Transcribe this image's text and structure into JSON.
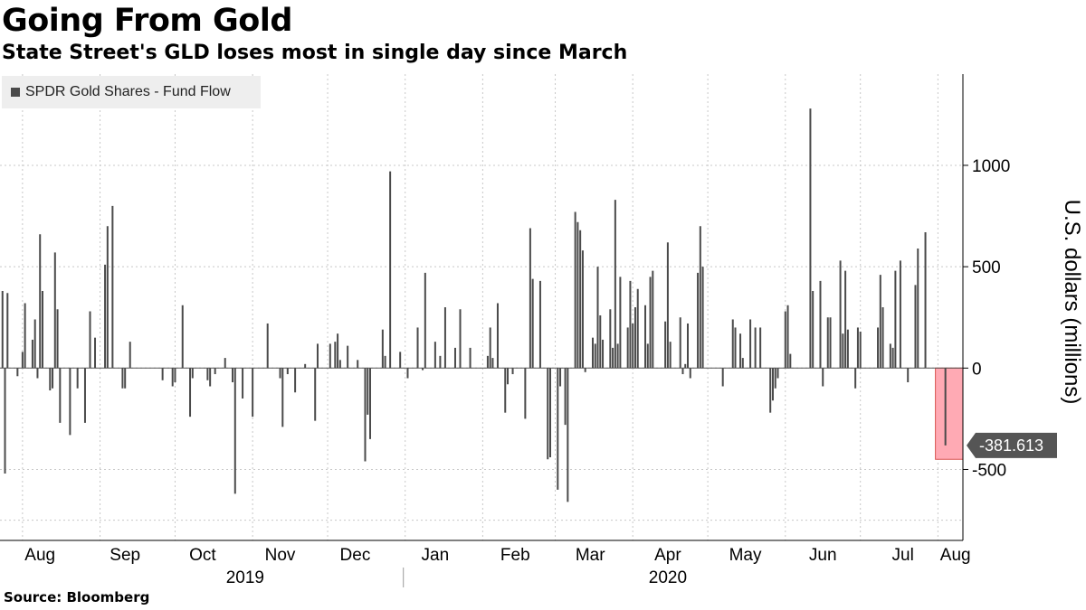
{
  "chart_data": {
    "type": "bar",
    "title": "Going From Gold",
    "subtitle": "State Street's GLD loses most in single day since March",
    "series": [
      {
        "name": "SPDR Gold Shares - Fund Flow",
        "color": "#4a4a4a",
        "points": [
          {
            "x": "2019-07-24",
            "y": 380
          },
          {
            "x": "2019-07-25",
            "y": -520
          },
          {
            "x": "2019-07-26",
            "y": 370
          },
          {
            "x": "2019-07-30",
            "y": -40
          },
          {
            "x": "2019-08-01",
            "y": 80
          },
          {
            "x": "2019-08-02",
            "y": 320
          },
          {
            "x": "2019-08-05",
            "y": 140
          },
          {
            "x": "2019-08-06",
            "y": 240
          },
          {
            "x": "2019-08-07",
            "y": -50
          },
          {
            "x": "2019-08-08",
            "y": 660
          },
          {
            "x": "2019-08-09",
            "y": 380
          },
          {
            "x": "2019-08-12",
            "y": -110
          },
          {
            "x": "2019-08-13",
            "y": -100
          },
          {
            "x": "2019-08-14",
            "y": 570
          },
          {
            "x": "2019-08-15",
            "y": 290
          },
          {
            "x": "2019-08-16",
            "y": -270
          },
          {
            "x": "2019-08-20",
            "y": -330
          },
          {
            "x": "2019-08-23",
            "y": -100
          },
          {
            "x": "2019-08-26",
            "y": -270
          },
          {
            "x": "2019-08-28",
            "y": 280
          },
          {
            "x": "2019-08-30",
            "y": 150
          },
          {
            "x": "2019-09-03",
            "y": 510
          },
          {
            "x": "2019-09-04",
            "y": 700
          },
          {
            "x": "2019-09-06",
            "y": 800
          },
          {
            "x": "2019-09-10",
            "y": -100
          },
          {
            "x": "2019-09-11",
            "y": -100
          },
          {
            "x": "2019-09-13",
            "y": 130
          },
          {
            "x": "2019-09-26",
            "y": -60
          },
          {
            "x": "2019-09-30",
            "y": -90
          },
          {
            "x": "2019-10-01",
            "y": -70
          },
          {
            "x": "2019-10-04",
            "y": 310
          },
          {
            "x": "2019-10-07",
            "y": -240
          },
          {
            "x": "2019-10-08",
            "y": -50
          },
          {
            "x": "2019-10-14",
            "y": -60
          },
          {
            "x": "2019-10-15",
            "y": -90
          },
          {
            "x": "2019-10-17",
            "y": -30
          },
          {
            "x": "2019-10-21",
            "y": 50
          },
          {
            "x": "2019-10-24",
            "y": -70
          },
          {
            "x": "2019-10-25",
            "y": -620
          },
          {
            "x": "2019-10-28",
            "y": -150
          },
          {
            "x": "2019-11-01",
            "y": -240
          },
          {
            "x": "2019-11-07",
            "y": 220
          },
          {
            "x": "2019-11-12",
            "y": -50
          },
          {
            "x": "2019-11-13",
            "y": -290
          },
          {
            "x": "2019-11-15",
            "y": -30
          },
          {
            "x": "2019-11-18",
            "y": -120
          },
          {
            "x": "2019-11-22",
            "y": 20
          },
          {
            "x": "2019-11-26",
            "y": -260
          },
          {
            "x": "2019-11-27",
            "y": 120
          },
          {
            "x": "2019-12-02",
            "y": 120
          },
          {
            "x": "2019-12-04",
            "y": 130
          },
          {
            "x": "2019-12-05",
            "y": 170
          },
          {
            "x": "2019-12-06",
            "y": 40
          },
          {
            "x": "2019-12-09",
            "y": 110
          },
          {
            "x": "2019-12-13",
            "y": 40
          },
          {
            "x": "2019-12-16",
            "y": -460
          },
          {
            "x": "2019-12-17",
            "y": -230
          },
          {
            "x": "2019-12-18",
            "y": -350
          },
          {
            "x": "2019-12-23",
            "y": 190
          },
          {
            "x": "2019-12-24",
            "y": 60
          },
          {
            "x": "2019-12-26",
            "y": 970
          },
          {
            "x": "2019-12-30",
            "y": 80
          },
          {
            "x": "2020-01-02",
            "y": -50
          },
          {
            "x": "2020-01-06",
            "y": 200
          },
          {
            "x": "2020-01-08",
            "y": -10
          },
          {
            "x": "2020-01-09",
            "y": 470
          },
          {
            "x": "2020-01-13",
            "y": 130
          },
          {
            "x": "2020-01-15",
            "y": 60
          },
          {
            "x": "2020-01-17",
            "y": 300
          },
          {
            "x": "2020-01-21",
            "y": 100
          },
          {
            "x": "2020-01-23",
            "y": 290
          },
          {
            "x": "2020-01-27",
            "y": 100
          },
          {
            "x": "2020-02-03",
            "y": 60
          },
          {
            "x": "2020-02-04",
            "y": 200
          },
          {
            "x": "2020-02-05",
            "y": 50
          },
          {
            "x": "2020-02-07",
            "y": 320
          },
          {
            "x": "2020-02-10",
            "y": -220
          },
          {
            "x": "2020-02-11",
            "y": -80
          },
          {
            "x": "2020-02-13",
            "y": -30
          },
          {
            "x": "2020-02-18",
            "y": -250
          },
          {
            "x": "2020-02-20",
            "y": 690
          },
          {
            "x": "2020-02-21",
            "y": 440
          },
          {
            "x": "2020-02-24",
            "y": 430
          },
          {
            "x": "2020-02-27",
            "y": -450
          },
          {
            "x": "2020-02-28",
            "y": -440
          },
          {
            "x": "2020-03-02",
            "y": -600
          },
          {
            "x": "2020-03-03",
            "y": -90
          },
          {
            "x": "2020-03-05",
            "y": -280
          },
          {
            "x": "2020-03-06",
            "y": -660
          },
          {
            "x": "2020-03-09",
            "y": 770
          },
          {
            "x": "2020-03-10",
            "y": 720
          },
          {
            "x": "2020-03-11",
            "y": 680
          },
          {
            "x": "2020-03-12",
            "y": 580
          },
          {
            "x": "2020-03-13",
            "y": -20
          },
          {
            "x": "2020-03-16",
            "y": 150
          },
          {
            "x": "2020-03-17",
            "y": 120
          },
          {
            "x": "2020-03-18",
            "y": 500
          },
          {
            "x": "2020-03-19",
            "y": 260
          },
          {
            "x": "2020-03-20",
            "y": 140
          },
          {
            "x": "2020-03-23",
            "y": 290
          },
          {
            "x": "2020-03-24",
            "y": 100
          },
          {
            "x": "2020-03-25",
            "y": 830
          },
          {
            "x": "2020-03-26",
            "y": 120
          },
          {
            "x": "2020-03-27",
            "y": 450
          },
          {
            "x": "2020-03-30",
            "y": 200
          },
          {
            "x": "2020-03-31",
            "y": 430
          },
          {
            "x": "2020-04-01",
            "y": 220
          },
          {
            "x": "2020-04-02",
            "y": 300
          },
          {
            "x": "2020-04-03",
            "y": 390
          },
          {
            "x": "2020-04-06",
            "y": 310
          },
          {
            "x": "2020-04-07",
            "y": 120
          },
          {
            "x": "2020-04-08",
            "y": 450
          },
          {
            "x": "2020-04-09",
            "y": 480
          },
          {
            "x": "2020-04-14",
            "y": 230
          },
          {
            "x": "2020-04-15",
            "y": 620
          },
          {
            "x": "2020-04-16",
            "y": 130
          },
          {
            "x": "2020-04-20",
            "y": 250
          },
          {
            "x": "2020-04-21",
            "y": -30
          },
          {
            "x": "2020-04-22",
            "y": 20
          },
          {
            "x": "2020-04-23",
            "y": 220
          },
          {
            "x": "2020-04-24",
            "y": -50
          },
          {
            "x": "2020-04-27",
            "y": 470
          },
          {
            "x": "2020-04-28",
            "y": 700
          },
          {
            "x": "2020-04-29",
            "y": 500
          },
          {
            "x": "2020-05-07",
            "y": -90
          },
          {
            "x": "2020-05-11",
            "y": 240
          },
          {
            "x": "2020-05-12",
            "y": 200
          },
          {
            "x": "2020-05-14",
            "y": 170
          },
          {
            "x": "2020-05-15",
            "y": 50
          },
          {
            "x": "2020-05-18",
            "y": 240
          },
          {
            "x": "2020-05-20",
            "y": 200
          },
          {
            "x": "2020-05-22",
            "y": 200
          },
          {
            "x": "2020-05-26",
            "y": -220
          },
          {
            "x": "2020-05-27",
            "y": -160
          },
          {
            "x": "2020-05-28",
            "y": -100
          },
          {
            "x": "2020-05-29",
            "y": -50
          },
          {
            "x": "2020-06-01",
            "y": 280
          },
          {
            "x": "2020-06-02",
            "y": 310
          },
          {
            "x": "2020-06-03",
            "y": 70
          },
          {
            "x": "2020-06-11",
            "y": 1280
          },
          {
            "x": "2020-06-12",
            "y": 380
          },
          {
            "x": "2020-06-15",
            "y": 430
          },
          {
            "x": "2020-06-16",
            "y": -90
          },
          {
            "x": "2020-06-18",
            "y": 250
          },
          {
            "x": "2020-06-19",
            "y": 250
          },
          {
            "x": "2020-06-23",
            "y": 530
          },
          {
            "x": "2020-06-24",
            "y": 170
          },
          {
            "x": "2020-06-25",
            "y": 480
          },
          {
            "x": "2020-06-26",
            "y": 190
          },
          {
            "x": "2020-06-29",
            "y": -100
          },
          {
            "x": "2020-06-30",
            "y": 200
          },
          {
            "x": "2020-07-01",
            "y": 180
          },
          {
            "x": "2020-07-08",
            "y": 200
          },
          {
            "x": "2020-07-09",
            "y": 460
          },
          {
            "x": "2020-07-10",
            "y": 300
          },
          {
            "x": "2020-07-13",
            "y": 120
          },
          {
            "x": "2020-07-14",
            "y": 100
          },
          {
            "x": "2020-07-15",
            "y": 480
          },
          {
            "x": "2020-07-17",
            "y": 530
          },
          {
            "x": "2020-07-20",
            "y": -70
          },
          {
            "x": "2020-07-23",
            "y": 410
          },
          {
            "x": "2020-07-24",
            "y": 590
          },
          {
            "x": "2020-07-27",
            "y": 670
          },
          {
            "x": "2020-08-04",
            "y": -381.613
          }
        ]
      }
    ],
    "ylabel": "U.S. dollars (millions)",
    "ylim": [
      -850,
      1450
    ],
    "yticks": [
      1000,
      500,
      0,
      -500
    ],
    "ytick_labels": [
      "1000",
      "500",
      "0",
      "-500"
    ],
    "xlim": [
      "2019-07-23",
      "2020-08-11"
    ],
    "x_month_labels": [
      {
        "label": "Aug",
        "date": "2019-08-08"
      },
      {
        "label": "Sep",
        "date": "2019-09-11"
      },
      {
        "label": "Oct",
        "date": "2019-10-12"
      },
      {
        "label": "Nov",
        "date": "2019-11-12"
      },
      {
        "label": "Dec",
        "date": "2019-12-12"
      },
      {
        "label": "Jan",
        "date": "2020-01-13"
      },
      {
        "label": "Feb",
        "date": "2020-02-14"
      },
      {
        "label": "Mar",
        "date": "2020-03-15"
      },
      {
        "label": "Apr",
        "date": "2020-04-15"
      },
      {
        "label": "May",
        "date": "2020-05-16"
      },
      {
        "label": "Jun",
        "date": "2020-06-16"
      },
      {
        "label": "Jul",
        "date": "2020-07-18"
      },
      {
        "label": "Aug",
        "date": "2020-08-08"
      }
    ],
    "x_month_gridlines": [
      "2019-08-01",
      "2019-09-01",
      "2019-10-01",
      "2019-11-01",
      "2019-12-01",
      "2020-01-01",
      "2020-02-01",
      "2020-03-01",
      "2020-04-01",
      "2020-05-01",
      "2020-06-01",
      "2020-07-01",
      "2020-08-01"
    ],
    "x_year_labels": [
      {
        "label": "2019",
        "date": "2019-10-29"
      },
      {
        "label": "2020",
        "date": "2020-04-15"
      }
    ],
    "year_divider": "2020-01-01",
    "highlight": {
      "x_start": "2020-07-31",
      "x_end": "2020-08-11",
      "y_start": 0,
      "y_end": -450,
      "color": "#ffaab4"
    },
    "annotation": {
      "label": "-381.613",
      "value": -381.613
    },
    "grid": true,
    "legend_position": "top-left"
  },
  "source": "Source: Bloomberg"
}
